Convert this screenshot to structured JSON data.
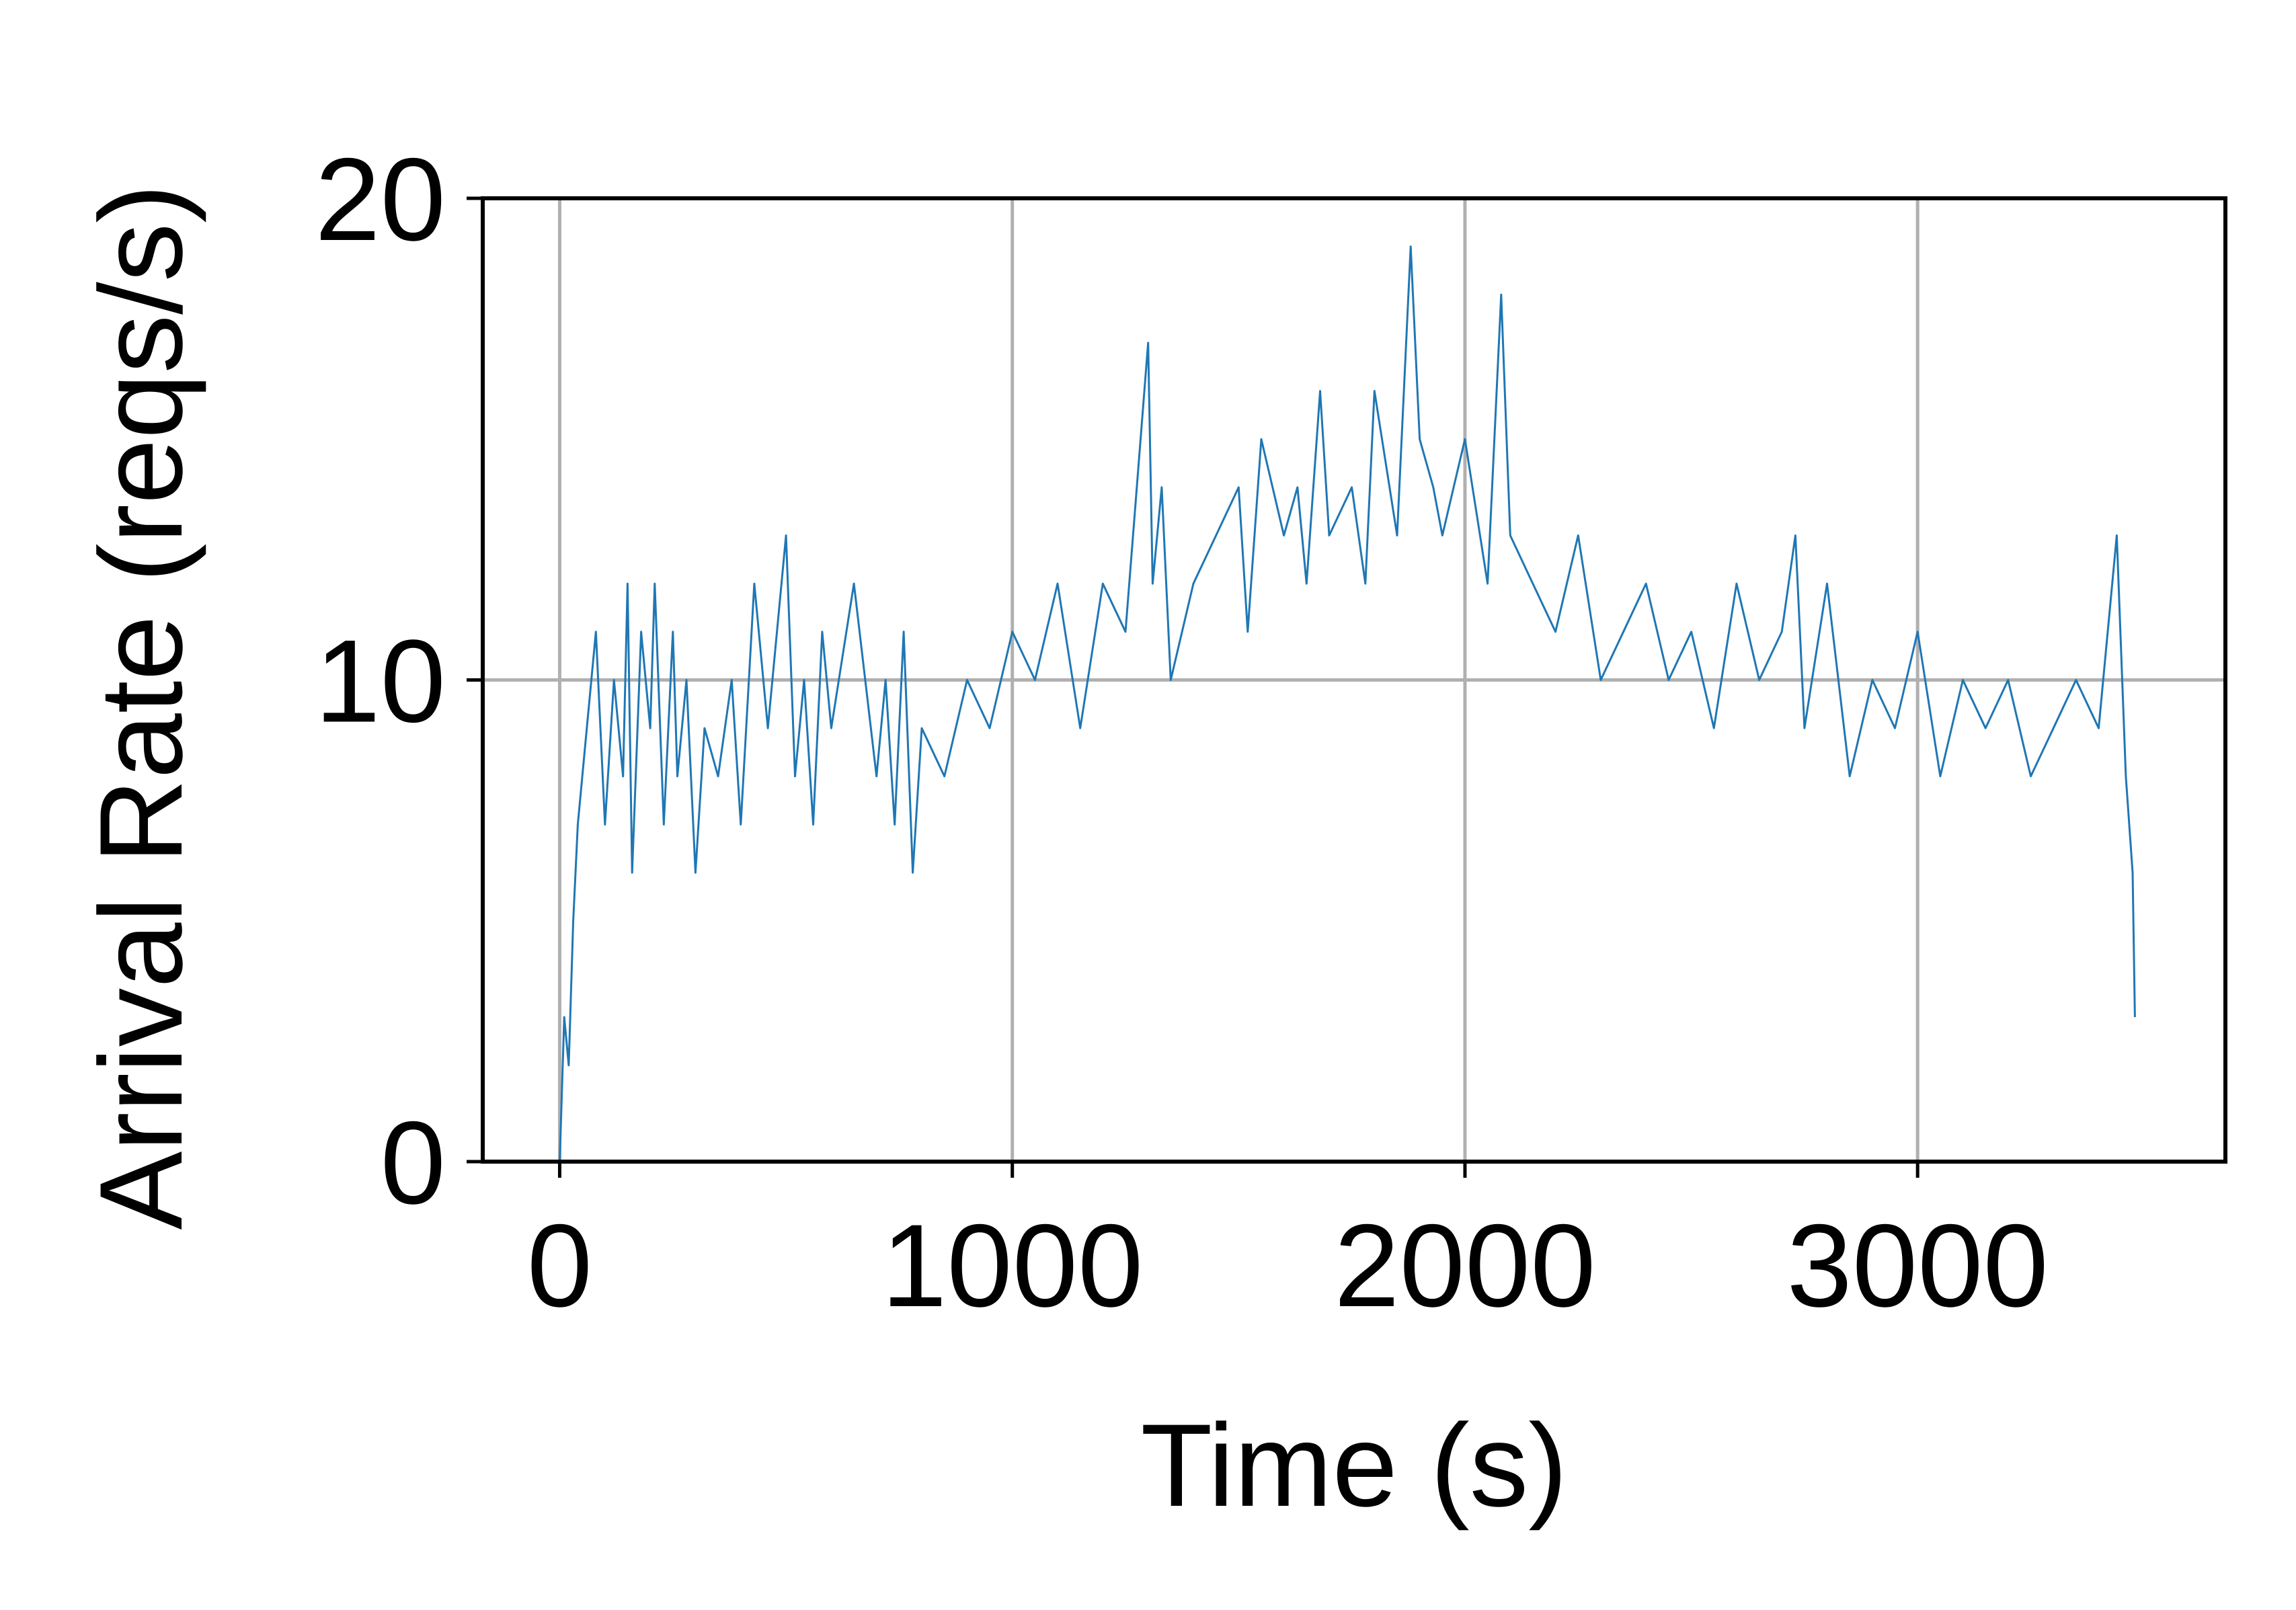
{
  "chart_data": {
    "type": "line",
    "title": "",
    "xlabel": "Time (s)",
    "ylabel": "Arrival Rate (reqs/s)",
    "xlim": [
      -170,
      3680
    ],
    "ylim": [
      0,
      20
    ],
    "xticks": [
      0,
      1000,
      2000,
      3000
    ],
    "yticks": [
      0,
      10,
      20
    ],
    "grid": true,
    "legend": "none",
    "series_color": "#1f77b4",
    "grid_color": "#b0b0b0",
    "series": [
      {
        "x": [
          0,
          10,
          20,
          30,
          40,
          50,
          60,
          80,
          100,
          120,
          140,
          150,
          160,
          180,
          200,
          210,
          230,
          250,
          260,
          280,
          300,
          320,
          350,
          380,
          400,
          430,
          460,
          500,
          520,
          540,
          560,
          580,
          600,
          650,
          700,
          720,
          740,
          760,
          780,
          800,
          850,
          900,
          950,
          1000,
          1050,
          1100,
          1150,
          1200,
          1250,
          1300,
          1310,
          1330,
          1350,
          1400,
          1450,
          1500,
          1520,
          1550,
          1600,
          1630,
          1650,
          1680,
          1700,
          1750,
          1780,
          1800,
          1850,
          1880,
          1900,
          1930,
          1950,
          2000,
          2050,
          2080,
          2100,
          2150,
          2200,
          2250,
          2300,
          2350,
          2400,
          2450,
          2500,
          2550,
          2600,
          2650,
          2700,
          2730,
          2750,
          2800,
          2850,
          2900,
          2950,
          3000,
          3050,
          3100,
          3150,
          3200,
          3250,
          3300,
          3350,
          3400,
          3440,
          3460,
          3475,
          3480
        ],
        "values": [
          0,
          3,
          2,
          5,
          7,
          8,
          9,
          11,
          7,
          10,
          8,
          12,
          6,
          11,
          9,
          12,
          7,
          11,
          8,
          10,
          6,
          9,
          8,
          10,
          7,
          12,
          9,
          13,
          8,
          10,
          7,
          11,
          9,
          12,
          8,
          10,
          7,
          11,
          6,
          9,
          8,
          10,
          9,
          11,
          10,
          12,
          9,
          12,
          11,
          17,
          12,
          14,
          10,
          12,
          13,
          14,
          11,
          15,
          13,
          14,
          12,
          16,
          13,
          14,
          12,
          16,
          13,
          19,
          15,
          14,
          13,
          15,
          12,
          18,
          13,
          12,
          11,
          13,
          10,
          11,
          12,
          10,
          11,
          9,
          12,
          10,
          11,
          13,
          9,
          12,
          8,
          10,
          9,
          11,
          8,
          10,
          9,
          10,
          8,
          9,
          10,
          9,
          13,
          8,
          6,
          3
        ]
      }
    ]
  }
}
